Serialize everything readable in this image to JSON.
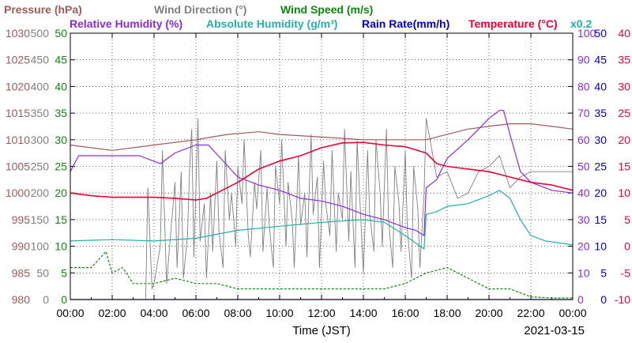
{
  "chart_data": {
    "type": "line",
    "date": "2021-03-15",
    "xlabel": "Time (JST)",
    "x_ticks": [
      "00:00",
      "02:00",
      "04:00",
      "06:00",
      "08:00",
      "10:00",
      "12:00",
      "14:00",
      "16:00",
      "18:00",
      "20:00",
      "22:00",
      "00:00"
    ],
    "x_range_hours": [
      0,
      24
    ],
    "grid": true,
    "legend": [
      {
        "key": "pressure",
        "label": "Pressure (hPa)",
        "color": "#a05a5a"
      },
      {
        "key": "wind_dir",
        "label": "Wind Direction (°)",
        "color": "#808080"
      },
      {
        "key": "wind_speed",
        "label": "Wind Speed (m/s)",
        "color": "#0a8a0a"
      },
      {
        "key": "rel_hum",
        "label": "Relative Humidity (%)",
        "color": "#8a2be2"
      },
      {
        "key": "abs_hum",
        "label": "Absolute Humidity (g/m³)",
        "color": "#20b2aa"
      },
      {
        "key": "rain",
        "label": "Rain Rate(mm/h)",
        "color": "#0000cc"
      },
      {
        "key": "temp",
        "label": "Temperature (°C)",
        "color": "#ee0033"
      }
    ],
    "abs_hum_scale_note": "x0.2",
    "axes": {
      "pressure": {
        "ticks": [
          "980",
          "985",
          "990",
          "995",
          "1000",
          "1005",
          "1010",
          "1015",
          "1020",
          "1025",
          "1030"
        ],
        "range": [
          980,
          1030
        ],
        "color": "#a05a5a"
      },
      "wind_dir": {
        "ticks": [
          "0",
          "50",
          "100",
          "150",
          "200",
          "250",
          "300",
          "350",
          "400",
          "450",
          "500"
        ],
        "range": [
          0,
          500
        ],
        "color": "#808080"
      },
      "wind_speed": {
        "ticks": [
          "0",
          "5",
          "10",
          "15",
          "20",
          "25",
          "30",
          "35",
          "40",
          "45",
          "50"
        ],
        "range": [
          0,
          50
        ],
        "color": "#0a8a0a"
      },
      "rel_hum": {
        "ticks": [
          "0",
          "10",
          "20",
          "30",
          "40",
          "50",
          "60",
          "70",
          "80",
          "90",
          "100"
        ],
        "range": [
          0,
          100
        ],
        "color": "#8a2be2"
      },
      "rain": {
        "ticks": [
          "0",
          "5",
          "10",
          "15",
          "20",
          "25",
          "30",
          "35",
          "40",
          "45",
          "50"
        ],
        "range": [
          0,
          50
        ],
        "color": "#0000cc"
      },
      "temp": {
        "ticks": [
          "-10",
          "-5",
          "0",
          "5",
          "10",
          "15",
          "20",
          "25",
          "30",
          "35",
          "40"
        ],
        "range": [
          -10,
          40
        ],
        "color": "#ee0033"
      }
    },
    "series": [
      {
        "key": "pressure",
        "axis": "pressure",
        "x": [
          0,
          2,
          4,
          6,
          7.5,
          9,
          10,
          12,
          14,
          16,
          17,
          18,
          19,
          20,
          21,
          22,
          23,
          24
        ],
        "values": [
          1009,
          1008,
          1009,
          1010,
          1011,
          1011.5,
          1011,
          1010.5,
          1010,
          1010,
          1010,
          1011,
          1012,
          1012.5,
          1013,
          1013,
          1012.5,
          1012
        ]
      },
      {
        "key": "rel_hum",
        "axis": "rel_hum",
        "x": [
          0,
          0.4,
          1.5,
          3.3,
          4.3,
          5,
          6,
          6.6,
          8,
          9,
          10,
          11,
          12,
          13,
          14,
          15,
          16,
          16.5,
          16.9,
          17,
          17.5,
          18,
          19,
          19.5,
          20,
          20.5,
          20.7,
          21,
          21.5,
          22,
          23,
          24
        ],
        "values": [
          48,
          54,
          54,
          54,
          51,
          55,
          58,
          58,
          46,
          43,
          41,
          38,
          37,
          35,
          32,
          30,
          27,
          26,
          24,
          42,
          45,
          53,
          60,
          64,
          68,
          71,
          71,
          62,
          48,
          44,
          41,
          40
        ]
      },
      {
        "key": "abs_hum",
        "axis": "rel_hum",
        "x": [
          0,
          2,
          4,
          6,
          7,
          8,
          10,
          12,
          14,
          15,
          16,
          16.9,
          17,
          17.5,
          18,
          19,
          20,
          20.5,
          21,
          21.5,
          22,
          22.7,
          24
        ],
        "values": [
          22,
          22.5,
          22,
          23,
          24.5,
          26,
          27.5,
          29,
          30,
          29,
          24,
          19,
          32,
          33,
          35,
          36,
          39,
          41,
          38,
          30,
          24,
          22,
          20.5
        ]
      },
      {
        "key": "temp",
        "axis": "temp",
        "x": [
          0,
          1,
          2,
          3,
          4,
          5,
          6,
          6.5,
          7,
          8,
          9,
          10,
          11,
          12,
          13,
          14,
          15,
          16,
          17,
          17.5,
          18,
          19,
          20,
          21,
          22,
          23,
          24
        ],
        "values": [
          10,
          9.5,
          9.2,
          9.2,
          9.2,
          9,
          8.7,
          9,
          10,
          12,
          14.5,
          16,
          17,
          18.5,
          19.4,
          19.5,
          19,
          18.7,
          17.5,
          15.5,
          15,
          14.5,
          14,
          13,
          12,
          11.5,
          10.5
        ]
      },
      {
        "key": "wind_speed",
        "axis": "wind_speed",
        "x": [
          0,
          1,
          1.7,
          2,
          2.5,
          3,
          4,
          5,
          6,
          7,
          8,
          9,
          10,
          11,
          12,
          13,
          14,
          15,
          16,
          17,
          18,
          19,
          20,
          21,
          22,
          23,
          24
        ],
        "values": [
          6,
          6,
          9,
          5,
          6,
          3,
          3,
          4,
          3,
          3,
          2,
          2,
          2,
          2,
          2,
          2,
          2,
          2,
          3,
          5,
          6,
          4,
          2,
          2,
          0.5,
          0.3,
          0.3
        ]
      },
      {
        "key": "wind_dir",
        "axis": "wind_dir",
        "x": [
          0,
          3.6,
          3.7,
          3.9,
          4.0,
          4.3,
          4.4,
          4.6,
          4.7,
          5.0,
          5.1,
          5.3,
          5.4,
          5.6,
          5.7,
          5.8,
          5.9,
          6.1,
          6.2,
          6.4,
          6.5,
          6.7,
          6.8,
          7.0,
          7.1,
          7.3,
          7.4,
          7.6,
          7.7,
          7.9,
          8.0,
          8.2,
          8.3,
          8.5,
          8.6,
          8.8,
          8.9,
          9.1,
          9.2,
          9.4,
          9.5,
          9.7,
          9.8,
          10.0,
          10.1,
          10.3,
          10.4,
          10.6,
          10.7,
          10.9,
          11.0,
          11.2,
          11.3,
          11.5,
          11.6,
          11.8,
          11.9,
          12.1,
          12.2,
          12.4,
          12.5,
          12.7,
          12.8,
          13.0,
          13.1,
          13.3,
          13.4,
          13.6,
          13.7,
          13.9,
          14.0,
          14.2,
          14.3,
          14.5,
          14.6,
          14.8,
          14.9,
          15.1,
          15.2,
          15.4,
          15.5,
          15.7,
          15.8,
          16.0,
          16.1,
          16.3,
          16.4,
          16.6,
          16.7,
          16.9,
          17.0,
          17.5,
          18.0,
          18.5,
          19.0,
          19.5,
          20.0,
          20.5,
          21.0,
          21.5,
          22.0,
          24.0
        ],
        "values": [
          0,
          0,
          210,
          20,
          30,
          100,
          280,
          30,
          80,
          220,
          60,
          240,
          40,
          120,
          250,
          320,
          80,
          340,
          110,
          180,
          40,
          200,
          90,
          260,
          130,
          60,
          280,
          150,
          200,
          100,
          250,
          180,
          300,
          120,
          80,
          220,
          170,
          280,
          90,
          210,
          140,
          60,
          250,
          180,
          300,
          100,
          220,
          150,
          60,
          270,
          140,
          200,
          80,
          310,
          160,
          230,
          60,
          260,
          180,
          120,
          280,
          90,
          200,
          150,
          320,
          110,
          240,
          60,
          300,
          130,
          50,
          280,
          160,
          90,
          300,
          200,
          100,
          320,
          150,
          60,
          250,
          180,
          90,
          280,
          130,
          40,
          250,
          170,
          60,
          200,
          340,
          230,
          240,
          190,
          200,
          240,
          250,
          270,
          210,
          230,
          240,
          240
        ]
      },
      {
        "key": "rain",
        "axis": "rain",
        "x": [
          0,
          24
        ],
        "values": [
          0,
          0
        ]
      }
    ]
  }
}
